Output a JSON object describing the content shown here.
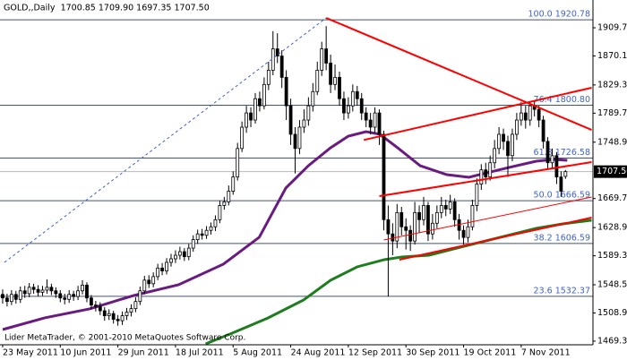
{
  "chart_data": {
    "type": "candlestick",
    "title": "GOLD,,Daily  1700.85 1709.90 1697.35 1707.50",
    "footer": "Lider MetaTrader, © 2001-2010 MetaQuotes Software Corp.",
    "up_color": "#ffffff",
    "down_color": "#000000",
    "open": [
      1535,
      1530,
      1525,
      1535,
      1528,
      1540,
      1536,
      1545,
      1542,
      1538,
      1541,
      1545,
      1540,
      1536,
      1530,
      1528,
      1535,
      1532,
      1540,
      1548,
      1530,
      1520,
      1518,
      1512,
      1505,
      1508,
      1500,
      1498,
      1505,
      1510,
      1515,
      1525,
      1540,
      1555,
      1550,
      1560,
      1572,
      1568,
      1580,
      1585,
      1590,
      1595,
      1588,
      1600,
      1612,
      1620,
      1618,
      1625,
      1630,
      1640,
      1660,
      1665,
      1680,
      1700,
      1740,
      1770,
      1790,
      1780,
      1810,
      1800,
      1830,
      1850,
      1880,
      1870,
      1840,
      1800,
      1760,
      1740,
      1770,
      1780,
      1800,
      1820,
      1850,
      1880,
      1860,
      1830,
      1840,
      1810,
      1790,
      1800,
      1820,
      1810,
      1790,
      1780,
      1770,
      1790,
      1760,
      1640,
      1620,
      1610,
      1650,
      1630,
      1625,
      1610,
      1650,
      1640,
      1660,
      1620,
      1635,
      1650,
      1660,
      1655,
      1665,
      1640,
      1625,
      1615,
      1630,
      1660,
      1690,
      1710,
      1700,
      1720,
      1740,
      1760,
      1750,
      1730,
      1760,
      1780,
      1790,
      1780,
      1800,
      1795,
      1780,
      1750,
      1720,
      1730,
      1700,
      1700.85
    ],
    "high": [
      1542,
      1536,
      1541,
      1540,
      1546,
      1547,
      1551,
      1550,
      1548,
      1547,
      1556,
      1550,
      1545,
      1541,
      1536,
      1541,
      1540,
      1547,
      1555,
      1552,
      1534,
      1526,
      1524,
      1517,
      1514,
      1512,
      1506,
      1511,
      1516,
      1521,
      1531,
      1546,
      1561,
      1562,
      1566,
      1578,
      1579,
      1586,
      1592,
      1597,
      1602,
      1600,
      1606,
      1618,
      1626,
      1627,
      1631,
      1636,
      1646,
      1667,
      1672,
      1688,
      1708,
      1748,
      1778,
      1800,
      1798,
      1818,
      1820,
      1840,
      1862,
      1905,
      1902,
      1878,
      1850,
      1810,
      1770,
      1780,
      1795,
      1812,
      1832,
      1862,
      1890,
      1912,
      1872,
      1858,
      1848,
      1820,
      1812,
      1830,
      1828,
      1818,
      1798,
      1790,
      1798,
      1795,
      1765,
      1660,
      1635,
      1662,
      1658,
      1642,
      1632,
      1665,
      1660,
      1672,
      1665,
      1648,
      1660,
      1672,
      1668,
      1675,
      1670,
      1648,
      1632,
      1640,
      1668,
      1698,
      1718,
      1720,
      1730,
      1752,
      1770,
      1768,
      1758,
      1768,
      1790,
      1805,
      1800,
      1806,
      1808,
      1800,
      1786,
      1756,
      1740,
      1735,
      1708,
      1709.9
    ],
    "low": [
      1522,
      1518,
      1520,
      1522,
      1523,
      1530,
      1531,
      1536,
      1532,
      1533,
      1536,
      1534,
      1530,
      1524,
      1521,
      1523,
      1526,
      1527,
      1535,
      1524,
      1514,
      1511,
      1506,
      1498,
      1499,
      1494,
      1491,
      1492,
      1499,
      1504,
      1510,
      1520,
      1535,
      1544,
      1545,
      1555,
      1562,
      1563,
      1574,
      1579,
      1584,
      1582,
      1583,
      1595,
      1606,
      1612,
      1613,
      1619,
      1624,
      1635,
      1654,
      1660,
      1675,
      1695,
      1735,
      1762,
      1770,
      1775,
      1792,
      1795,
      1822,
      1843,
      1860,
      1825,
      1780,
      1745,
      1705,
      1732,
      1762,
      1772,
      1792,
      1815,
      1842,
      1850,
      1818,
      1822,
      1800,
      1780,
      1782,
      1792,
      1800,
      1780,
      1770,
      1760,
      1762,
      1745,
      1625,
      1532,
      1590,
      1600,
      1618,
      1598,
      1596,
      1605,
      1622,
      1632,
      1610,
      1612,
      1628,
      1642,
      1645,
      1648,
      1630,
      1612,
      1605,
      1608,
      1625,
      1652,
      1682,
      1690,
      1695,
      1712,
      1732,
      1738,
      1700,
      1722,
      1752,
      1772,
      1768,
      1772,
      1785,
      1770,
      1740,
      1712,
      1712,
      1690,
      1672,
      1697.35
    ],
    "close": [
      1530,
      1525,
      1535,
      1528,
      1540,
      1536,
      1545,
      1542,
      1538,
      1541,
      1545,
      1540,
      1536,
      1530,
      1528,
      1535,
      1532,
      1540,
      1548,
      1530,
      1520,
      1518,
      1512,
      1505,
      1508,
      1500,
      1498,
      1505,
      1510,
      1515,
      1525,
      1540,
      1555,
      1550,
      1560,
      1572,
      1568,
      1580,
      1585,
      1590,
      1595,
      1588,
      1600,
      1612,
      1620,
      1618,
      1625,
      1630,
      1640,
      1660,
      1665,
      1680,
      1700,
      1740,
      1770,
      1790,
      1780,
      1810,
      1800,
      1830,
      1850,
      1880,
      1870,
      1840,
      1800,
      1760,
      1740,
      1770,
      1780,
      1800,
      1820,
      1850,
      1880,
      1860,
      1830,
      1840,
      1810,
      1790,
      1800,
      1820,
      1810,
      1790,
      1780,
      1770,
      1790,
      1760,
      1640,
      1620,
      1610,
      1650,
      1630,
      1625,
      1610,
      1650,
      1640,
      1660,
      1620,
      1635,
      1650,
      1660,
      1655,
      1665,
      1640,
      1625,
      1615,
      1630,
      1660,
      1690,
      1710,
      1700,
      1720,
      1740,
      1760,
      1750,
      1730,
      1760,
      1780,
      1790,
      1780,
      1800,
      1795,
      1780,
      1750,
      1720,
      1730,
      1700,
      1680,
      1707.5
    ],
    "xlim": [
      -0.6,
      133.2
    ],
    "xticks": [
      {
        "value": 0,
        "label": "23 May 2011"
      },
      {
        "value": 13,
        "label": "10 Jun 2011"
      },
      {
        "value": 26,
        "label": "29 Jun 2011"
      },
      {
        "value": 39,
        "label": "18 Jul 2011"
      },
      {
        "value": 52,
        "label": "5 Aug 2011"
      },
      {
        "value": 65,
        "label": "24 Aug 2011"
      },
      {
        "value": 78,
        "label": "12 Sep 2011"
      },
      {
        "value": 91,
        "label": "30 Sep 2011"
      },
      {
        "value": 104,
        "label": "19 Oct 2011"
      },
      {
        "value": 117,
        "label": "7 Nov 2011"
      }
    ],
    "ylim": [
      1464.2,
      1948.7
    ],
    "yticks": [
      {
        "value": 1909.7,
        "label": "1909.70"
      },
      {
        "value": 1870.1,
        "label": "1870.10"
      },
      1829.35,
      {
        "value": 1789.7,
        "label": "1789.70"
      },
      {
        "value": 1748.9,
        "label": "1748.90"
      },
      {
        "value": 1669.7,
        "label": "1669.70"
      },
      {
        "value": 1628.9,
        "label": "1628.90"
      },
      {
        "value": 1589.3,
        "label": "1589.30"
      },
      {
        "value": 1548.5,
        "label": "1548.50"
      },
      {
        "value": 1508.9,
        "label": "1508.90"
      },
      {
        "value": 1469.3,
        "label": "1469.30"
      }
    ],
    "fib_color": "#44536e",
    "fib_label_color": "#3f63c8",
    "fib_levels": [
      {
        "value": 1920.78,
        "label": "100.0 1920.78"
      },
      {
        "value": 1800.8,
        "label": "76.4 1800.80"
      },
      {
        "value": 1726.58,
        "label": "61.8 1726.58"
      },
      {
        "value": 1666.59,
        "label": "50.0 1666.59"
      },
      {
        "value": 1606.59,
        "label": "38.2 1606.59"
      },
      {
        "value": 1532.37,
        "label": "23.6 1532.37"
      }
    ],
    "moving_averages": [
      {
        "color": "#6a1b80",
        "x": [
          0,
          9.5,
          19.6,
          29.6,
          39.7,
          49.8,
          57.9,
          63.9,
          69,
          74,
          78,
          82,
          85.1,
          89.1,
          94.2,
          100.2,
          105.2,
          109.3,
          114.3,
          120.4,
          124.4,
          127.4
        ],
        "values": [
          1485.6,
          1502,
          1514.6,
          1533.5,
          1548.6,
          1577.5,
          1615.3,
          1684.5,
          1715.9,
          1741.1,
          1757.4,
          1763.7,
          1760,
          1741.1,
          1715.9,
          1703.3,
          1699.6,
          1705.9,
          1713.4,
          1722.2,
          1724.7,
          1723.5
        ]
      },
      {
        "color": "#1e7d1e",
        "x": [
          45.8,
          51.8,
          59.9,
          67.9,
          74,
          80,
          86.1,
          90.1,
          96.2,
          104.2,
          112.3,
          120.4,
          126.4,
          132.9
        ],
        "values": [
          1465.5,
          1480.6,
          1502,
          1527.2,
          1554.9,
          1573.7,
          1583.8,
          1587.6,
          1590.1,
          1602.7,
          1615.3,
          1627.8,
          1634.1,
          1639.2
        ]
      }
    ],
    "trendlines": [
      {
        "color": "#ff0000",
        "width": 2,
        "x": [
          73,
          132.9
        ],
        "values": [
          1923.5,
          1766.2
        ]
      },
      {
        "color": "#ff0000",
        "width": 2,
        "x": [
          81.5,
          132.9
        ],
        "values": [
          1752,
          1825.4
        ]
      },
      {
        "color": "#ff0000",
        "width": 2,
        "x": [
          85,
          132.9
        ],
        "values": [
          1673.1,
          1720.9
        ]
      },
      {
        "color": "#ff0000",
        "width": 1,
        "x": [
          86,
          132.9
        ],
        "values": [
          1611.4,
          1671.8
        ]
      },
      {
        "color": "#ff0000",
        "width": 2,
        "x": [
          89.5,
          132.9
        ],
        "values": [
          1583.7,
          1642.9
        ]
      },
      {
        "color": "#3b5fd0",
        "width": 1,
        "dashed": true,
        "x": [
          0.4,
          73
        ],
        "values": [
          1580,
          1923.5
        ]
      }
    ],
    "price_tag": {
      "value": 1707.5,
      "label": "1707.50"
    }
  }
}
